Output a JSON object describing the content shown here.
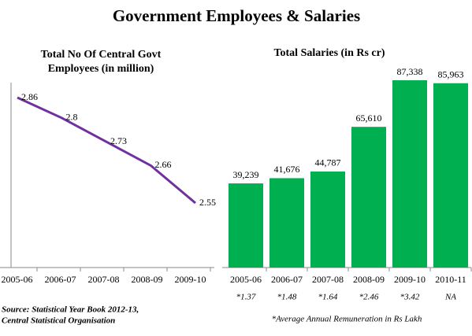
{
  "title": "Government Employees & Salaries",
  "source": [
    "Source: Statistical Year Book 2012-13,",
    "Central Statistical Organisation"
  ],
  "chart_data": [
    {
      "type": "line",
      "title": [
        "Total No Of Central Govt",
        "Employees (in million)"
      ],
      "categories": [
        "2005-06",
        "2006-07",
        "2007-08",
        "2008-09",
        "2009-10"
      ],
      "values": [
        2.86,
        2.8,
        2.73,
        2.66,
        2.55
      ],
      "color": "#7030a0"
    },
    {
      "type": "bar",
      "title": "Total Salaries (in Rs cr)",
      "categories": [
        "2005-06",
        "2006-07",
        "2007-08",
        "2008-09",
        "2009-10",
        "2010-11"
      ],
      "values": [
        39239,
        41676,
        44787,
        65610,
        87338,
        85963
      ],
      "value_labels": [
        "39,239",
        "41,676",
        "44,787",
        "65,610",
        "87,338",
        "85,963"
      ],
      "color": "#00b050",
      "annotations": [
        "*1.37",
        "*1.48",
        "*1.64",
        "*2.46",
        "*3.42",
        "NA"
      ],
      "footnote": "*Average Annual Remuneration in Rs Lakh"
    }
  ]
}
